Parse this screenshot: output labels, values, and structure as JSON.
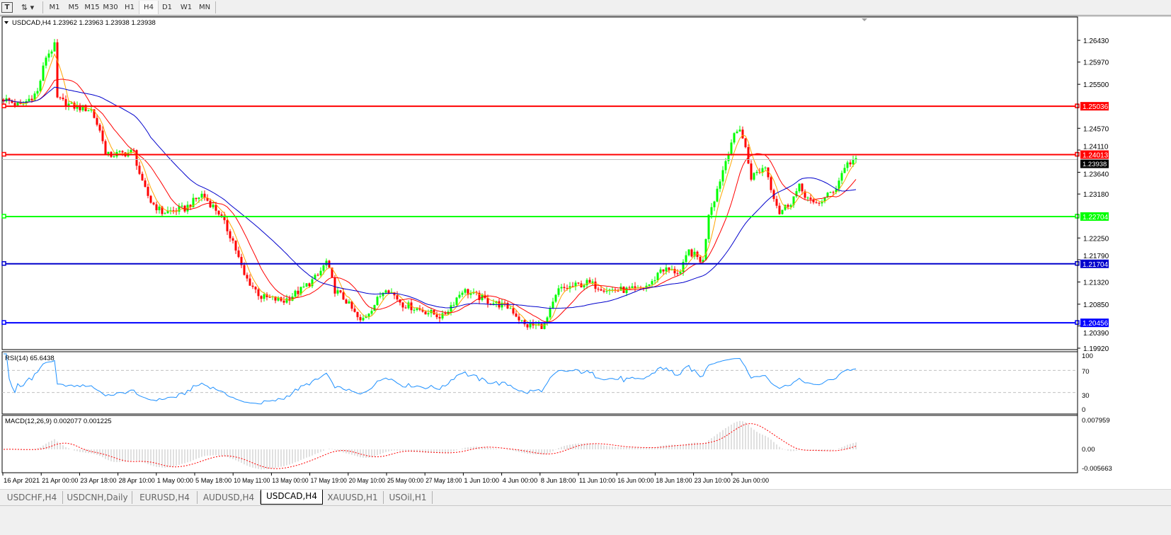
{
  "toolbar": {
    "text_tool_icon": "text-T-icon",
    "arrows_tool_icon": "arrows-icon",
    "timeframes": [
      "M1",
      "M5",
      "M15",
      "M30",
      "H1",
      "H4",
      "D1",
      "W1",
      "MN"
    ],
    "active_timeframe": "H4"
  },
  "chart": {
    "header": "USDCAD,H4  1.23962 1.23963 1.23938 1.23938",
    "symbol": "USDCAD",
    "current_price": 1.23938,
    "current_price_label": "1.23938",
    "colors": {
      "bull": "#00ff00",
      "bear": "#ff0000",
      "ma_fast": "#ffa500",
      "ma_mid": "#ff0000",
      "ma_slow": "#0000cc",
      "rsi": "#1e90ff",
      "macd_hist": "#c0c0c0",
      "macd_signal": "#ff0000"
    },
    "price_ticks": [
      "1.26430",
      "1.25970",
      "1.25500",
      "1.24570",
      "1.24110",
      "1.23640",
      "1.23180",
      "1.22250",
      "1.21790",
      "1.21320",
      "1.20850",
      "1.20390",
      "1.19920"
    ],
    "hlines": [
      {
        "price": 1.25036,
        "label": "1.25036",
        "color": "#ff0000"
      },
      {
        "price": 1.24013,
        "label": "1.24013",
        "color": "#ff0000"
      },
      {
        "price": 1.22704,
        "label": "1.22704",
        "color": "#00ff00"
      },
      {
        "price": 1.21704,
        "label": "1.21704",
        "color": "#0000cc"
      },
      {
        "price": 1.20456,
        "label": "1.20456",
        "color": "#0000ff"
      }
    ],
    "price_keyframes": [
      [
        0,
        1.2519
      ],
      [
        6,
        1.2504
      ],
      [
        12,
        1.2534
      ],
      [
        15,
        1.2609
      ],
      [
        18,
        1.2631
      ],
      [
        19,
        1.2519
      ],
      [
        24,
        1.2504
      ],
      [
        31,
        1.2496
      ],
      [
        35,
        1.2436
      ],
      [
        36,
        1.2399
      ],
      [
        46,
        1.2407
      ],
      [
        49,
        1.2339
      ],
      [
        52,
        1.2302
      ],
      [
        56,
        1.2279
      ],
      [
        64,
        1.2287
      ],
      [
        70,
        1.2317
      ],
      [
        76,
        1.2279
      ],
      [
        81,
        1.2219
      ],
      [
        85,
        1.2145
      ],
      [
        91,
        1.21
      ],
      [
        99,
        1.2092
      ],
      [
        105,
        1.2115
      ],
      [
        111,
        1.2145
      ],
      [
        114,
        1.2175
      ],
      [
        117,
        1.2115
      ],
      [
        121,
        1.2092
      ],
      [
        126,
        1.2047
      ],
      [
        131,
        1.2085
      ],
      [
        135,
        1.2122
      ],
      [
        141,
        1.2085
      ],
      [
        149,
        1.207
      ],
      [
        155,
        1.2058
      ],
      [
        162,
        1.2115
      ],
      [
        171,
        1.2092
      ],
      [
        179,
        1.2077
      ],
      [
        184,
        1.204
      ],
      [
        191,
        1.204
      ],
      [
        196,
        1.2115
      ],
      [
        206,
        1.213
      ],
      [
        214,
        1.2115
      ],
      [
        224,
        1.2115
      ],
      [
        229,
        1.213
      ],
      [
        232,
        1.216
      ],
      [
        239,
        1.2152
      ],
      [
        242,
        1.2197
      ],
      [
        247,
        1.2175
      ],
      [
        249,
        1.2279
      ],
      [
        251,
        1.2309
      ],
      [
        254,
        1.2369
      ],
      [
        257,
        1.2429
      ],
      [
        260,
        1.2459
      ],
      [
        262,
        1.2414
      ],
      [
        264,
        1.2354
      ],
      [
        269,
        1.2377
      ],
      [
        271,
        1.2332
      ],
      [
        274,
        1.2279
      ],
      [
        278,
        1.2302
      ],
      [
        281,
        1.2332
      ],
      [
        286,
        1.2294
      ],
      [
        290,
        1.2309
      ],
      [
        294,
        1.2332
      ],
      [
        297,
        1.2377
      ],
      [
        301,
        1.23938
      ]
    ],
    "time_labels": [
      "16 Apr 2021",
      "21 Apr 00:00",
      "23 Apr 18:00",
      "28 Apr 10:00",
      "1 May 00:00",
      "5 May 18:00",
      "10 May 11:00",
      "13 May 00:00",
      "17 May 19:00",
      "20 May 10:00",
      "25 May 00:00",
      "27 May 18:00",
      "1 Jun 10:00",
      "4 Jun 00:00",
      "8 Jun 18:00",
      "11 Jun 10:00",
      "16 Jun 00:00",
      "18 Jun 18:00",
      "23 Jun 10:00",
      "26 Jun 00:00"
    ]
  },
  "rsi": {
    "label": "RSI(14) 65.6438",
    "ticks": [
      "100",
      "70",
      "30",
      "0"
    ],
    "levels": [
      70,
      30
    ]
  },
  "macd": {
    "label": "MACD(12,26,9) 0.002077 0.001225",
    "ticks": [
      "0.007959",
      "0.00",
      "-0.005663"
    ],
    "max": 0.007959,
    "min": -0.005663
  },
  "tabs": [
    {
      "label": "USDCHF,H4",
      "active": false
    },
    {
      "label": "USDCNH,Daily",
      "active": false
    },
    {
      "label": "EURUSD,H4",
      "active": false
    },
    {
      "label": "AUDUSD,H4",
      "active": false
    },
    {
      "label": "USDCAD,H4",
      "active": true
    },
    {
      "label": "XAUUSD,H1",
      "active": false
    },
    {
      "label": "USOil,H1",
      "active": false
    }
  ]
}
